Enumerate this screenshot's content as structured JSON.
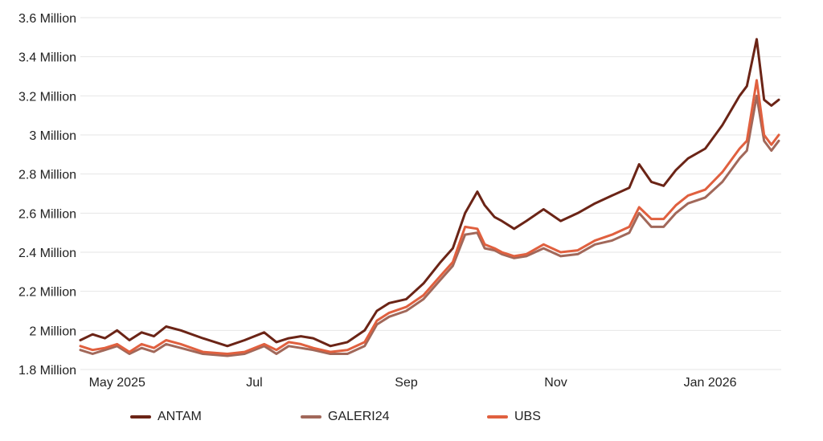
{
  "chart_data": {
    "type": "line",
    "x_ticks": [
      "May 2025",
      "Jul",
      "Sep",
      "Nov",
      "Jan 2026"
    ],
    "y_ticks": [
      "1.8 Million",
      "2 Million",
      "2.2 Million",
      "2.4 Million",
      "2.6 Million",
      "2.8 Million",
      "3 Million",
      "3.2 Million",
      "3.4 Million",
      "3.6 Million"
    ],
    "ylim": [
      1800000,
      3600000
    ],
    "xlim": [
      "2025-04-21",
      "2026-02-01"
    ],
    "grid": true,
    "legend_position": "bottom",
    "colors": {
      "ANTAM": "#6b2416",
      "GALERI24": "#a1685a",
      "UBS": "#e0603f"
    },
    "series": [
      {
        "name": "ANTAM",
        "x": [
          "2025-04-21",
          "2025-04-26",
          "2025-05-01",
          "2025-05-06",
          "2025-05-11",
          "2025-05-16",
          "2025-05-21",
          "2025-05-26",
          "2025-06-01",
          "2025-06-10",
          "2025-06-20",
          "2025-06-27",
          "2025-07-05",
          "2025-07-10",
          "2025-07-15",
          "2025-07-20",
          "2025-07-25",
          "2025-08-01",
          "2025-08-08",
          "2025-08-15",
          "2025-08-20",
          "2025-08-25",
          "2025-09-01",
          "2025-09-08",
          "2025-09-15",
          "2025-09-20",
          "2025-09-25",
          "2025-09-30",
          "2025-10-03",
          "2025-10-07",
          "2025-10-10",
          "2025-10-15",
          "2025-10-20",
          "2025-10-27",
          "2025-11-03",
          "2025-11-10",
          "2025-11-17",
          "2025-11-24",
          "2025-12-01",
          "2025-12-05",
          "2025-12-10",
          "2025-12-15",
          "2025-12-20",
          "2025-12-25",
          "2026-01-01",
          "2026-01-08",
          "2026-01-15",
          "2026-01-18",
          "2026-01-22",
          "2026-01-25",
          "2026-01-28",
          "2026-01-31"
        ],
        "values": [
          1950000,
          1980000,
          1960000,
          2000000,
          1950000,
          1990000,
          1970000,
          2020000,
          2000000,
          1960000,
          1920000,
          1950000,
          1990000,
          1940000,
          1960000,
          1970000,
          1960000,
          1920000,
          1940000,
          2000000,
          2100000,
          2140000,
          2160000,
          2240000,
          2350000,
          2420000,
          2600000,
          2710000,
          2640000,
          2580000,
          2560000,
          2520000,
          2560000,
          2620000,
          2560000,
          2600000,
          2650000,
          2690000,
          2730000,
          2850000,
          2760000,
          2740000,
          2820000,
          2880000,
          2930000,
          3050000,
          3200000,
          3250000,
          3490000,
          3180000,
          3150000,
          3180000
        ]
      },
      {
        "name": "GALERI24",
        "x": [
          "2025-04-21",
          "2025-04-26",
          "2025-05-01",
          "2025-05-06",
          "2025-05-11",
          "2025-05-16",
          "2025-05-21",
          "2025-05-26",
          "2025-06-01",
          "2025-06-10",
          "2025-06-20",
          "2025-06-27",
          "2025-07-05",
          "2025-07-10",
          "2025-07-15",
          "2025-07-20",
          "2025-07-25",
          "2025-08-01",
          "2025-08-08",
          "2025-08-15",
          "2025-08-20",
          "2025-08-25",
          "2025-09-01",
          "2025-09-08",
          "2025-09-15",
          "2025-09-20",
          "2025-09-25",
          "2025-09-30",
          "2025-10-03",
          "2025-10-07",
          "2025-10-10",
          "2025-10-15",
          "2025-10-20",
          "2025-10-27",
          "2025-11-03",
          "2025-11-10",
          "2025-11-17",
          "2025-11-24",
          "2025-12-01",
          "2025-12-05",
          "2025-12-10",
          "2025-12-15",
          "2025-12-20",
          "2025-12-25",
          "2026-01-01",
          "2026-01-08",
          "2026-01-15",
          "2026-01-18",
          "2026-01-22",
          "2026-01-25",
          "2026-01-28",
          "2026-01-31"
        ],
        "values": [
          1900000,
          1880000,
          1900000,
          1920000,
          1880000,
          1910000,
          1890000,
          1930000,
          1910000,
          1880000,
          1870000,
          1880000,
          1920000,
          1880000,
          1920000,
          1910000,
          1900000,
          1880000,
          1880000,
          1920000,
          2030000,
          2070000,
          2100000,
          2160000,
          2260000,
          2330000,
          2490000,
          2500000,
          2420000,
          2410000,
          2390000,
          2370000,
          2380000,
          2420000,
          2380000,
          2390000,
          2440000,
          2460000,
          2500000,
          2600000,
          2530000,
          2530000,
          2600000,
          2650000,
          2680000,
          2760000,
          2880000,
          2920000,
          3200000,
          2970000,
          2920000,
          2970000
        ]
      },
      {
        "name": "UBS",
        "x": [
          "2025-04-21",
          "2025-04-26",
          "2025-05-01",
          "2025-05-06",
          "2025-05-11",
          "2025-05-16",
          "2025-05-21",
          "2025-05-26",
          "2025-06-01",
          "2025-06-10",
          "2025-06-20",
          "2025-06-27",
          "2025-07-05",
          "2025-07-10",
          "2025-07-15",
          "2025-07-20",
          "2025-07-25",
          "2025-08-01",
          "2025-08-08",
          "2025-08-15",
          "2025-08-20",
          "2025-08-25",
          "2025-09-01",
          "2025-09-08",
          "2025-09-15",
          "2025-09-20",
          "2025-09-25",
          "2025-09-30",
          "2025-10-03",
          "2025-10-07",
          "2025-10-10",
          "2025-10-15",
          "2025-10-20",
          "2025-10-27",
          "2025-11-03",
          "2025-11-10",
          "2025-11-17",
          "2025-11-24",
          "2025-12-01",
          "2025-12-05",
          "2025-12-10",
          "2025-12-15",
          "2025-12-20",
          "2025-12-25",
          "2026-01-01",
          "2026-01-08",
          "2026-01-15",
          "2026-01-18",
          "2026-01-22",
          "2026-01-25",
          "2026-01-28",
          "2026-01-31"
        ],
        "values": [
          1920000,
          1900000,
          1910000,
          1930000,
          1890000,
          1930000,
          1910000,
          1950000,
          1930000,
          1890000,
          1880000,
          1890000,
          1930000,
          1900000,
          1940000,
          1930000,
          1910000,
          1890000,
          1900000,
          1940000,
          2050000,
          2090000,
          2120000,
          2180000,
          2280000,
          2350000,
          2530000,
          2520000,
          2440000,
          2420000,
          2400000,
          2380000,
          2390000,
          2440000,
          2400000,
          2410000,
          2460000,
          2490000,
          2530000,
          2630000,
          2570000,
          2570000,
          2640000,
          2690000,
          2720000,
          2810000,
          2930000,
          2970000,
          3280000,
          3000000,
          2950000,
          3000000
        ]
      }
    ]
  }
}
